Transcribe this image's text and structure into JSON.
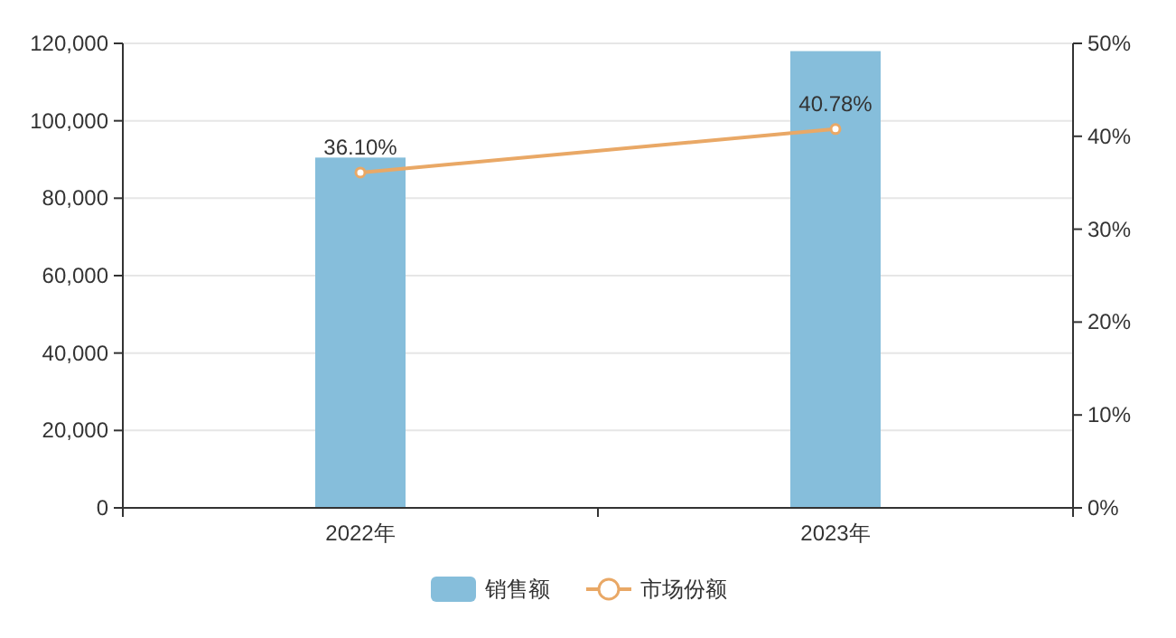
{
  "chart_data": {
    "type": "bar",
    "categories": [
      "2022年",
      "2023年"
    ],
    "series": [
      {
        "name": "销售额",
        "color": "#86bedb",
        "values": [
          90500,
          118000
        ]
      },
      {
        "name": "市场份额",
        "type": "line",
        "axis": "y2",
        "color": "#e9a866",
        "values": [
          36.1,
          40.78
        ],
        "value_labels": [
          "36.10%",
          "40.78%"
        ]
      }
    ],
    "ylim": [
      0,
      120000
    ],
    "yticks": [
      {
        "value": 0,
        "label": "0"
      },
      {
        "value": 20000,
        "label": "20,000"
      },
      {
        "value": 40000,
        "label": "40,000"
      },
      {
        "value": 60000,
        "label": "60,000"
      },
      {
        "value": 80000,
        "label": "80,000"
      },
      {
        "value": 100000,
        "label": "100,000"
      },
      {
        "value": 120000,
        "label": "120,000"
      }
    ],
    "y2lim": [
      0,
      50
    ],
    "y2ticks": [
      {
        "value": 0,
        "label": "0%"
      },
      {
        "value": 10,
        "label": "10%"
      },
      {
        "value": 20,
        "label": "20%"
      },
      {
        "value": 30,
        "label": "30%"
      },
      {
        "value": 40,
        "label": "40%"
      },
      {
        "value": 50,
        "label": "50%"
      }
    ],
    "grid": "y",
    "legend": "bottom",
    "marker": "circle"
  }
}
